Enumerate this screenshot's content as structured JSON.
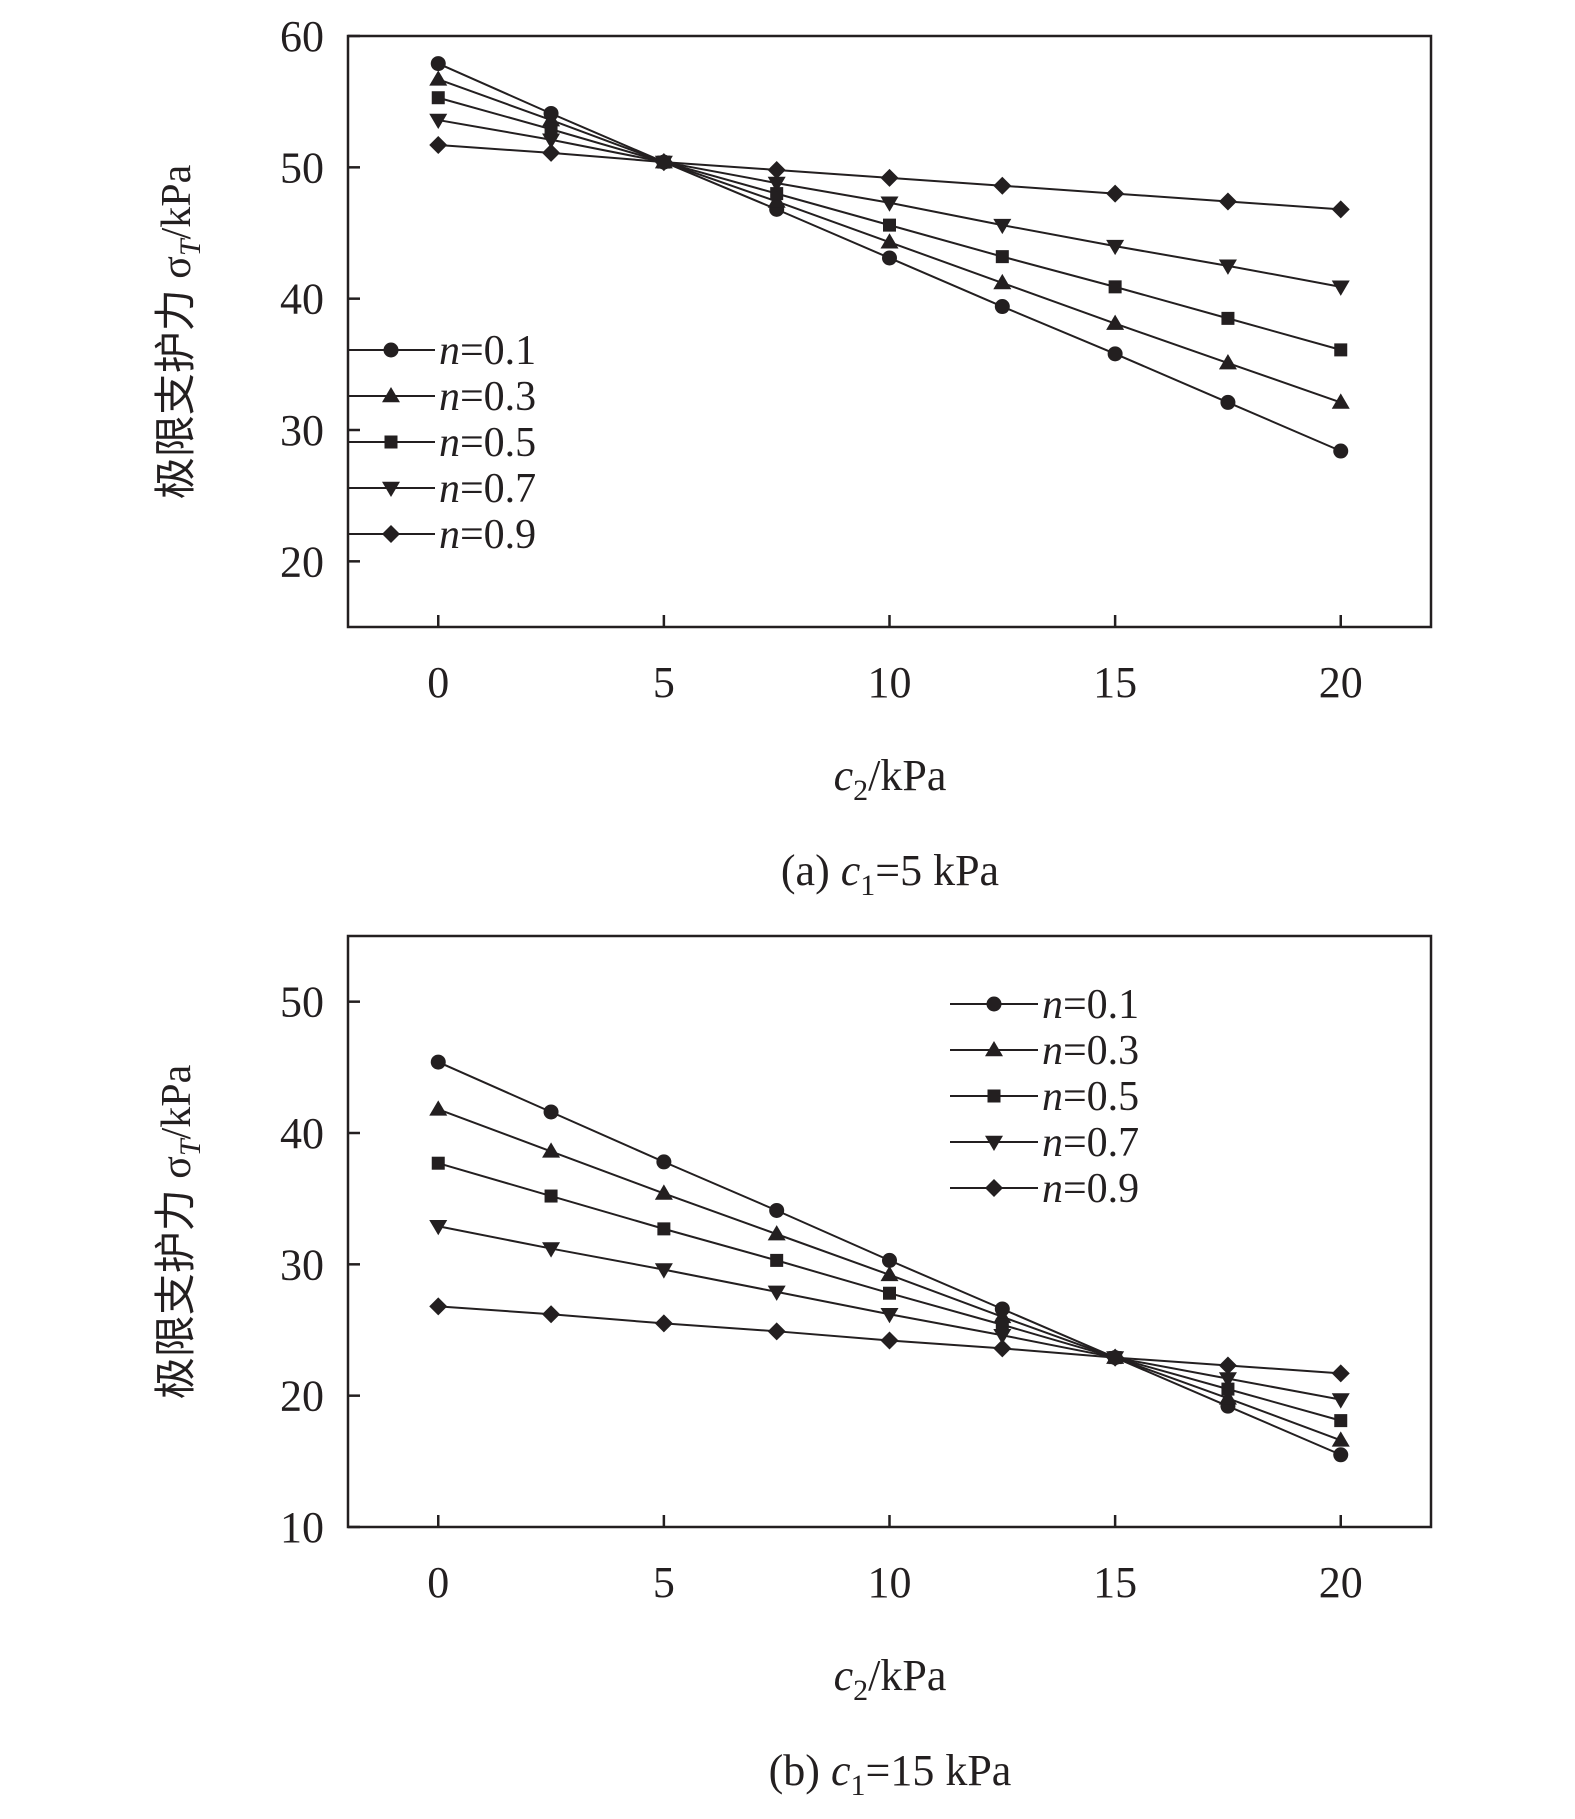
{
  "figure": {
    "y_label": "极限支护力 σ",
    "y_label_sub": "T",
    "y_label_unit": "/kPa",
    "x_label_var": "c",
    "x_label_sub": "2",
    "x_label_unit": "/kPa"
  },
  "chart_data": [
    {
      "type": "line",
      "caption_prefix": "(a) ",
      "caption_var": "c",
      "caption_sub": "1",
      "caption_rest": "=5 kPa",
      "xlabel": "c2/kPa",
      "ylabel": "极限支护力 σT/kPa",
      "x": [
        0,
        2.5,
        5,
        7.5,
        10,
        12.5,
        15,
        17.5,
        20
      ],
      "xlim": [
        -2,
        22
      ],
      "ylim": [
        15,
        60
      ],
      "x_ticks": [
        0,
        5,
        10,
        15,
        20
      ],
      "y_ticks": [
        20,
        30,
        40,
        50,
        60
      ],
      "legend_position": "center-left",
      "series": [
        {
          "name": "n=0.1",
          "marker": "circle",
          "values": [
            57.9,
            54.1,
            50.4,
            46.8,
            43.1,
            39.4,
            35.8,
            32.1,
            28.4
          ]
        },
        {
          "name": "n=0.3",
          "marker": "triangle-up",
          "values": [
            56.7,
            53.6,
            50.4,
            47.4,
            44.3,
            41.2,
            38.1,
            35.1,
            32.1
          ]
        },
        {
          "name": "n=0.5",
          "marker": "square",
          "values": [
            55.3,
            52.9,
            50.4,
            48.0,
            45.6,
            43.2,
            40.9,
            38.5,
            36.1
          ]
        },
        {
          "name": "n=0.7",
          "marker": "triangle-down",
          "values": [
            53.6,
            52.1,
            50.4,
            48.8,
            47.3,
            45.6,
            44.0,
            42.5,
            40.9
          ]
        },
        {
          "name": "n=0.9",
          "marker": "diamond",
          "values": [
            51.7,
            51.1,
            50.4,
            49.8,
            49.2,
            48.6,
            48.0,
            47.4,
            46.8
          ]
        }
      ]
    },
    {
      "type": "line",
      "caption_prefix": "(b) ",
      "caption_var": "c",
      "caption_sub": "1",
      "caption_rest": "=15 kPa",
      "xlabel": "c2/kPa",
      "ylabel": "极限支护力 σT/kPa",
      "x": [
        0,
        2.5,
        5,
        7.5,
        10,
        12.5,
        15,
        17.5,
        20
      ],
      "xlim": [
        -2,
        22
      ],
      "ylim": [
        10,
        55
      ],
      "x_ticks": [
        0,
        5,
        10,
        15,
        20
      ],
      "y_ticks": [
        10,
        20,
        30,
        40,
        50
      ],
      "legend_position": "top-right",
      "series": [
        {
          "name": "n=0.1",
          "marker": "circle",
          "values": [
            45.4,
            41.6,
            37.8,
            34.1,
            30.3,
            26.6,
            22.9,
            19.2,
            15.5
          ]
        },
        {
          "name": "n=0.3",
          "marker": "triangle-up",
          "values": [
            41.8,
            38.6,
            35.4,
            32.3,
            29.2,
            26.0,
            22.9,
            19.8,
            16.6
          ]
        },
        {
          "name": "n=0.5",
          "marker": "square",
          "values": [
            37.7,
            35.2,
            32.7,
            30.3,
            27.8,
            25.4,
            22.9,
            20.5,
            18.1
          ]
        },
        {
          "name": "n=0.7",
          "marker": "triangle-down",
          "values": [
            32.9,
            31.2,
            29.6,
            27.9,
            26.2,
            24.6,
            22.9,
            21.3,
            19.7
          ]
        },
        {
          "name": "n=0.9",
          "marker": "diamond",
          "values": [
            26.8,
            26.2,
            25.5,
            24.9,
            24.2,
            23.6,
            22.9,
            22.3,
            21.7
          ]
        }
      ]
    }
  ]
}
